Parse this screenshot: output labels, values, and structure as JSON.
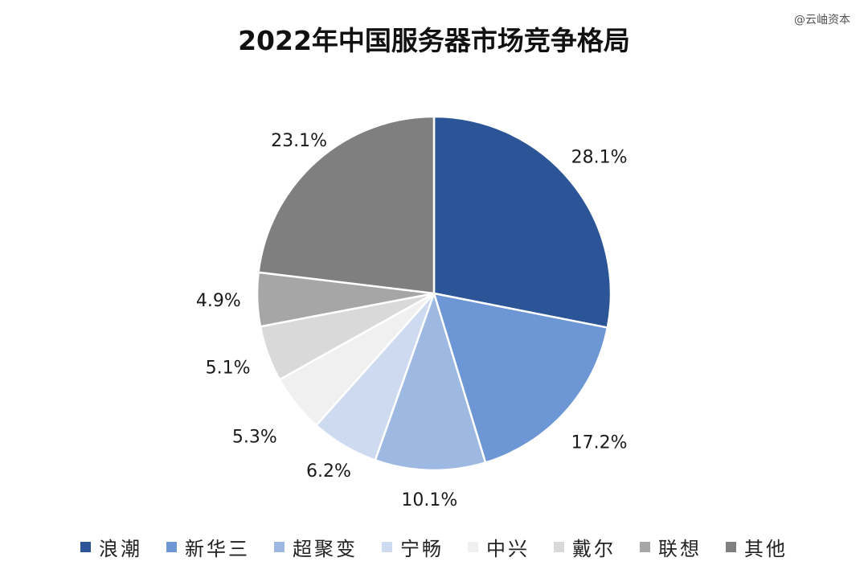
{
  "watermark": "@云岫资本",
  "chart_data": {
    "type": "pie",
    "title": "2022年中国服务器市场竞争格局",
    "unit": "%",
    "categories": [
      "浪潮",
      "新华三",
      "超聚变",
      "宁畅",
      "中兴",
      "戴尔",
      "联想",
      "其他"
    ],
    "values": [
      28.1,
      17.2,
      10.1,
      6.2,
      5.3,
      5.1,
      4.9,
      23.1
    ],
    "labels": [
      "28.1%",
      "17.2%",
      "10.1%",
      "6.2%",
      "5.3%",
      "5.1%",
      "4.9%",
      "23.1%"
    ],
    "colors": [
      "#2B5597",
      "#6D96D4",
      "#9DB8E1",
      "#CDDAF0",
      "#F0F0F0",
      "#D9D9D9",
      "#A6A6A6",
      "#7F7F7F"
    ],
    "start_angle": "12 o'clock",
    "direction": "clockwise",
    "legend_position": "bottom"
  }
}
